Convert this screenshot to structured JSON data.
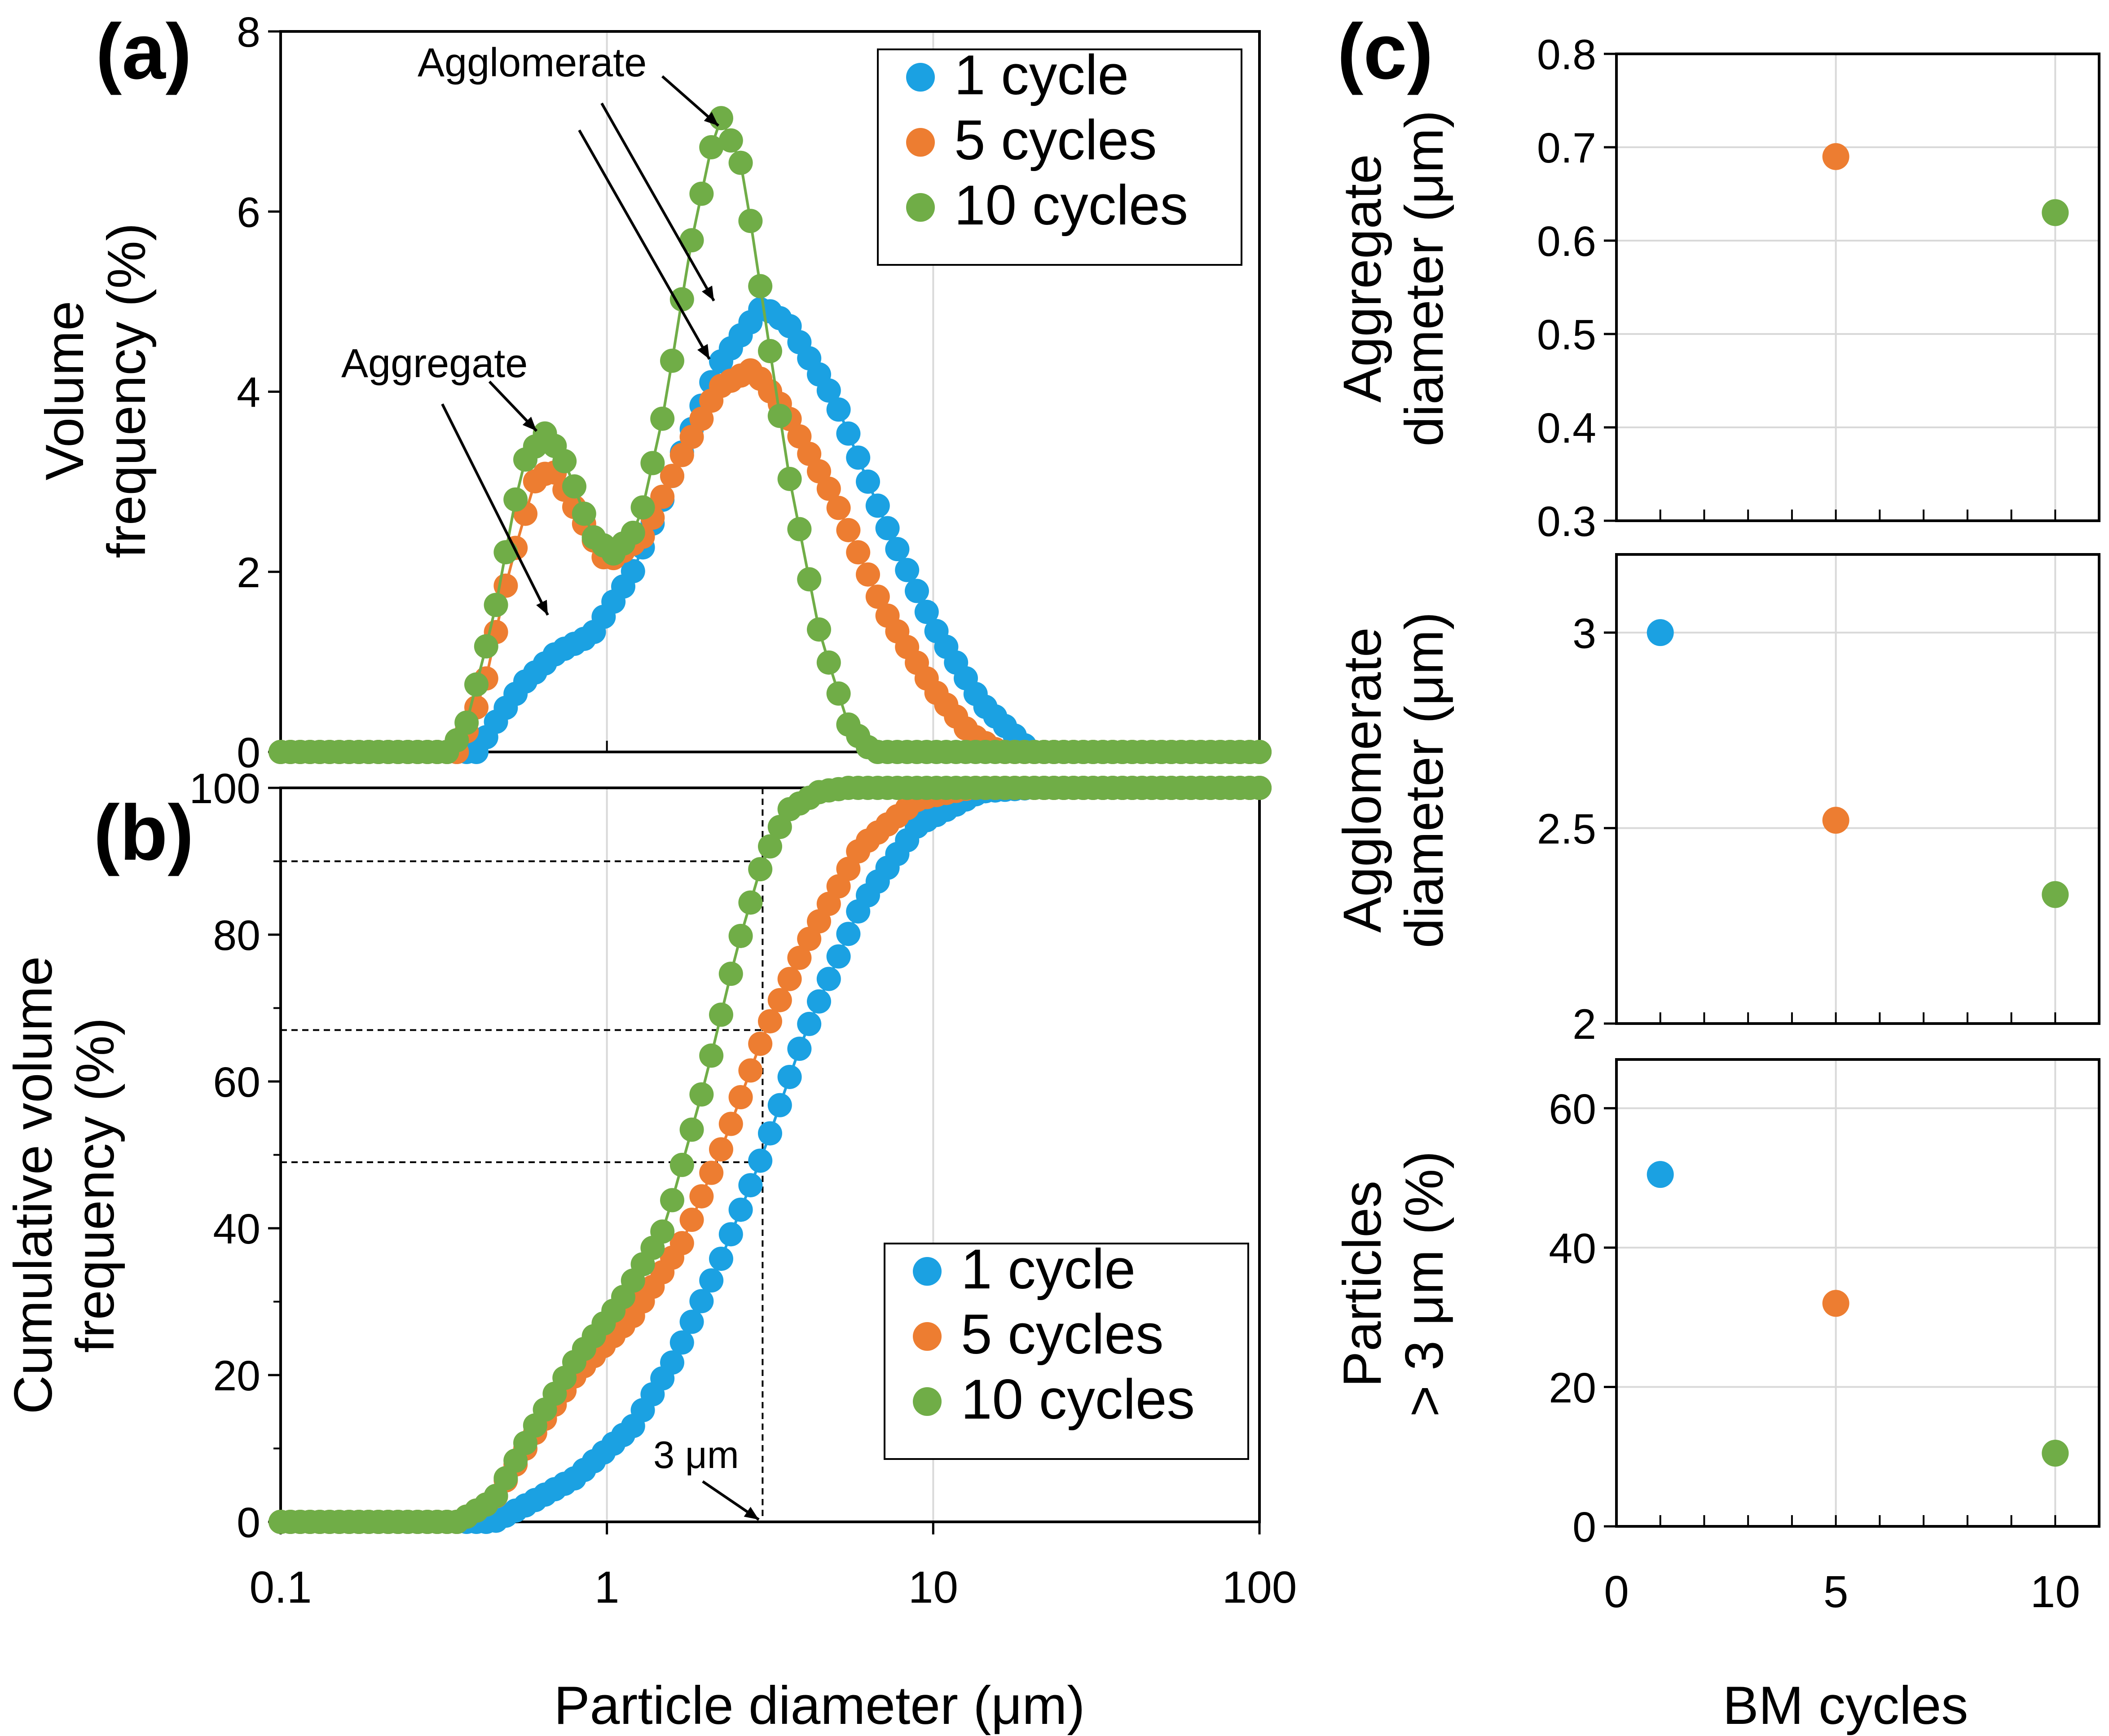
{
  "colors": {
    "s1": "#1ba1e2",
    "s5": "#ed7d31",
    "s10": "#70ad47",
    "frame": "#000000",
    "grid": "#d9d9d9"
  },
  "panel_labels": {
    "a": "(a)",
    "b": "(b)",
    "c": "(c)"
  },
  "shared_xlabel": "Particle diameter (μm)",
  "c_xlabel": "BM cycles",
  "chart_data": [
    {
      "id": "a",
      "type": "scatter",
      "xscale": "log",
      "xlim": [
        0.1,
        100
      ],
      "ylim": [
        0,
        8
      ],
      "yticks": [
        "0",
        "2",
        "4",
        "6",
        "8"
      ],
      "ylabel_lines": [
        "Volume",
        "frequency (%)"
      ],
      "legend": {
        "position": "top-right",
        "entries": [
          "1 cycle",
          "5 cycles",
          "10 cycles"
        ]
      },
      "annotations": [
        "Agglomerate",
        "Aggregate"
      ],
      "series": [
        {
          "name": "1 cycle",
          "color_key": "s1",
          "peaks": [
            [
              0.13,
              0
            ],
            [
              0.4,
              0
            ],
            [
              0.45,
              0.3
            ],
            [
              0.55,
              0.75
            ],
            [
              0.7,
              1.1
            ],
            [
              0.9,
              1.3
            ],
            [
              1.2,
              2.0
            ],
            [
              1.6,
              3.1
            ],
            [
              2.2,
              4.3
            ],
            [
              3.0,
              4.95
            ],
            [
              3.6,
              4.75
            ],
            [
              5.0,
              3.9
            ],
            [
              7.0,
              2.6
            ],
            [
              10.0,
              1.4
            ],
            [
              14.0,
              0.55
            ],
            [
              20.0,
              0
            ],
            [
              100.0,
              0
            ]
          ]
        },
        {
          "name": "5 cycles",
          "color_key": "s5",
          "peaks": [
            [
              0.13,
              0
            ],
            [
              0.35,
              0
            ],
            [
              0.42,
              0.7
            ],
            [
              0.5,
              2.0
            ],
            [
              0.6,
              3.0
            ],
            [
              0.68,
              3.15
            ],
            [
              0.8,
              2.7
            ],
            [
              1.0,
              2.1
            ],
            [
              1.3,
              2.4
            ],
            [
              1.7,
              3.3
            ],
            [
              2.2,
              4.05
            ],
            [
              2.8,
              4.25
            ],
            [
              3.5,
              3.8
            ],
            [
              5.0,
              2.8
            ],
            [
              7.0,
              1.6
            ],
            [
              10.0,
              0.7
            ],
            [
              13.0,
              0.2
            ],
            [
              16.0,
              0
            ],
            [
              100.0,
              0
            ]
          ]
        },
        {
          "name": "10 cycles",
          "color_key": "s10",
          "peaks": [
            [
              0.13,
              0
            ],
            [
              0.33,
              0
            ],
            [
              0.37,
              0.3
            ],
            [
              0.45,
              1.5
            ],
            [
              0.55,
              3.2
            ],
            [
              0.65,
              3.55
            ],
            [
              0.75,
              3.2
            ],
            [
              0.9,
              2.4
            ],
            [
              1.05,
              2.2
            ],
            [
              1.25,
              2.5
            ],
            [
              1.5,
              3.8
            ],
            [
              1.8,
              5.6
            ],
            [
              2.2,
              7.1
            ],
            [
              2.6,
              6.5
            ],
            [
              3.0,
              5.0
            ],
            [
              3.6,
              3.1
            ],
            [
              4.5,
              1.3
            ],
            [
              5.5,
              0.3
            ],
            [
              6.5,
              0
            ],
            [
              100.0,
              0
            ]
          ]
        }
      ]
    },
    {
      "id": "b",
      "type": "scatter",
      "xscale": "log",
      "xlim": [
        0.1,
        100
      ],
      "ylim": [
        0,
        100
      ],
      "xticks": [
        "0.1",
        "1",
        "10",
        "100"
      ],
      "yticks": [
        "0",
        "20",
        "40",
        "60",
        "80",
        "100"
      ],
      "ylabel_lines": [
        "Cumulative volume",
        "frequency (%)"
      ],
      "legend": {
        "position": "bottom-right",
        "entries": [
          "1 cycle",
          "5 cycles",
          "10 cycles"
        ]
      },
      "annotation": "3 μm",
      "reference_lines": {
        "x": 3,
        "y": [
          49,
          67,
          90
        ]
      },
      "series": [
        {
          "name": "1 cycle",
          "color_key": "s1",
          "points": [
            [
              0.1,
              0
            ],
            [
              0.45,
              0
            ],
            [
              0.55,
              2
            ],
            [
              0.8,
              6
            ],
            [
              1.2,
              13
            ],
            [
              1.6,
              22
            ],
            [
              2.2,
              35
            ],
            [
              3.0,
              50
            ],
            [
              4.0,
              66
            ],
            [
              6.0,
              84
            ],
            [
              9.0,
              95
            ],
            [
              14.0,
              99.5
            ],
            [
              20.0,
              100
            ],
            [
              100.0,
              100
            ]
          ]
        },
        {
          "name": "5 cycles",
          "color_key": "s5",
          "points": [
            [
              0.1,
              0
            ],
            [
              0.35,
              0
            ],
            [
              0.45,
              3
            ],
            [
              0.6,
              12
            ],
            [
              0.8,
              20
            ],
            [
              1.2,
              28
            ],
            [
              1.7,
              38
            ],
            [
              2.3,
              52
            ],
            [
              3.0,
              66
            ],
            [
              4.0,
              78
            ],
            [
              6.0,
              92
            ],
            [
              9.0,
              98.5
            ],
            [
              13.0,
              100
            ],
            [
              100.0,
              100
            ]
          ]
        },
        {
          "name": "10 cycles",
          "color_key": "s10",
          "points": [
            [
              0.1,
              0
            ],
            [
              0.35,
              0
            ],
            [
              0.45,
              3
            ],
            [
              0.6,
              13
            ],
            [
              0.8,
              22
            ],
            [
              1.1,
              30
            ],
            [
              1.5,
              40
            ],
            [
              2.0,
              60
            ],
            [
              2.5,
              78
            ],
            [
              3.0,
              90
            ],
            [
              3.6,
              97
            ],
            [
              4.5,
              99.5
            ],
            [
              5.5,
              100
            ],
            [
              100.0,
              100
            ]
          ]
        }
      ]
    },
    {
      "id": "c1",
      "type": "scatter",
      "xlim": [
        0,
        11
      ],
      "ylim": [
        0.3,
        0.8
      ],
      "yticks": [
        "0.3",
        "0.4",
        "0.5",
        "0.6",
        "0.7",
        "0.8"
      ],
      "ylabel_lines": [
        "Aggregate",
        "diameter (μm)"
      ],
      "points": [
        {
          "series": "5 cycles",
          "x": 5,
          "y": 0.69,
          "color_key": "s5"
        },
        {
          "series": "10 cycles",
          "x": 10,
          "y": 0.63,
          "color_key": "s10"
        }
      ]
    },
    {
      "id": "c2",
      "type": "scatter",
      "xlim": [
        0,
        11
      ],
      "ylim": [
        2,
        3.2
      ],
      "yticks": [
        "2",
        "2.5",
        "3"
      ],
      "ylabel_lines": [
        "Agglomerate",
        "diameter (μm)"
      ],
      "points": [
        {
          "series": "1 cycle",
          "x": 1,
          "y": 3.0,
          "color_key": "s1"
        },
        {
          "series": "5 cycles",
          "x": 5,
          "y": 2.52,
          "color_key": "s5"
        },
        {
          "series": "10 cycles",
          "x": 10,
          "y": 2.33,
          "color_key": "s10"
        }
      ]
    },
    {
      "id": "c3",
      "type": "scatter",
      "xlim": [
        0,
        11
      ],
      "ylim": [
        0,
        67
      ],
      "xticks": [
        "0",
        "5",
        "10"
      ],
      "yticks": [
        "0",
        "20",
        "40",
        "60"
      ],
      "ylabel_lines": [
        "Particles",
        "> 3 μm (%)"
      ],
      "points": [
        {
          "series": "1 cycle",
          "x": 1,
          "y": 50.5,
          "color_key": "s1"
        },
        {
          "series": "5 cycles",
          "x": 5,
          "y": 32,
          "color_key": "s5"
        },
        {
          "series": "10 cycles",
          "x": 10,
          "y": 10.5,
          "color_key": "s10"
        }
      ]
    }
  ]
}
